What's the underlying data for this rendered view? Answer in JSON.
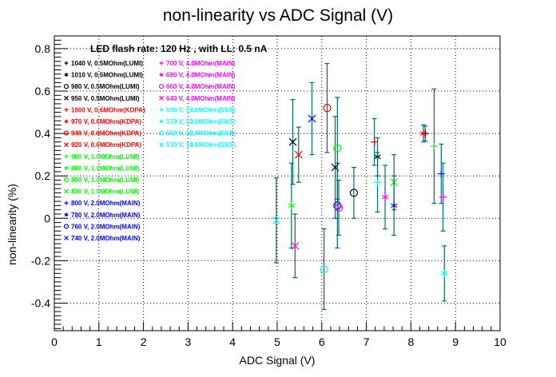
{
  "chart_data": {
    "type": "scatter",
    "title": "non-linearity vs ADC Signal (V)",
    "xlabel": "ADC Signal (V)",
    "ylabel": "non-linearity (%)",
    "xlim": [
      0,
      10
    ],
    "ylim": [
      -0.53,
      0.86
    ],
    "x_ticks": [
      "0",
      "1",
      "2",
      "3",
      "4",
      "5",
      "6",
      "7",
      "8",
      "9",
      "10"
    ],
    "y_ticks": [
      "-0.4",
      "-0.2",
      "0",
      "0.2",
      "0.4",
      "0.6",
      "0.8"
    ],
    "grid": true,
    "annotation": "LED flash rate: 120 Hz , with LL: 0.5 nA",
    "legend_entries": [
      {
        "label": "1040 V, 0.5MOhm(LUMI)",
        "marker": "+",
        "color": "#000000",
        "col": 0
      },
      {
        "label": "1010 V, 0.5MOhm(LUMI)",
        "marker": "*",
        "color": "#000000",
        "col": 0
      },
      {
        "label": "980 V, 0.5MOhm(LUMI)",
        "marker": "O",
        "color": "#000000",
        "col": 0
      },
      {
        "label": "950 V, 0.5MOhm(LUMI)",
        "marker": "X",
        "color": "#000000",
        "col": 0
      },
      {
        "label": "1000 V, 0.6MOhm(KDPA)",
        "marker": "+",
        "color": "#ff0000",
        "col": 0
      },
      {
        "label": "970 V, 0.6MOhm(KDPA)",
        "marker": "*",
        "color": "#ff0000",
        "col": 0
      },
      {
        "label": "940 V, 0.6MOhm(KDPA)",
        "marker": "O",
        "color": "#ff0000",
        "col": 0
      },
      {
        "label": "920 V, 0.6MOhm(KDPA)",
        "marker": "X",
        "color": "#ff0000",
        "col": 0
      },
      {
        "label": "900 V, 1.0MOhm(LUMI)",
        "marker": "+",
        "color": "#00ff00",
        "col": 0
      },
      {
        "label": "880 V, 1.0MOhm(LUMI)",
        "marker": "*",
        "color": "#00ff00",
        "col": 0
      },
      {
        "label": "850 V, 1.0MOhm(LUMI)",
        "marker": "O",
        "color": "#00ff00",
        "col": 0
      },
      {
        "label": "830 V, 1.0MOhm(LUMI)",
        "marker": "X",
        "color": "#00ff00",
        "col": 0
      },
      {
        "label": "800 V, 2.0MOhm(MAIN)",
        "marker": "+",
        "color": "#0000ff",
        "col": 0
      },
      {
        "label": "780 V, 2.0MOhm(MAIN)",
        "marker": "*",
        "color": "#0000ff",
        "col": 0
      },
      {
        "label": "760 V, 2.0MOhm(MAIN)",
        "marker": "O",
        "color": "#0000ff",
        "col": 0
      },
      {
        "label": "740 V, 2.0MOhm(MAIN)",
        "marker": "X",
        "color": "#0000ff",
        "col": 0
      },
      {
        "label": "700 V, 4.0MOhm(MAIN)",
        "marker": "+",
        "color": "#ff00ff",
        "col": 1
      },
      {
        "label": "680 V, 4.0MOhm(MAIN)",
        "marker": "*",
        "color": "#ff00ff",
        "col": 1
      },
      {
        "label": "660 V, 4.0MOhm(MAIN)",
        "marker": "O",
        "color": "#ff00ff",
        "col": 1
      },
      {
        "label": "640 V, 4.0MOhm(MAIN)",
        "marker": "X",
        "color": "#ff00ff",
        "col": 1
      },
      {
        "label": "590 V, 10.0MOhm(SNS)",
        "marker": "+",
        "color": "#00ffff",
        "col": 1
      },
      {
        "label": "570 V, 10.0MOhm(SNS)",
        "marker": "*",
        "color": "#00ffff",
        "col": 1
      },
      {
        "label": "550 V, 10.0MOhm(SNS)",
        "marker": "O",
        "color": "#00ffff",
        "col": 1
      },
      {
        "label": "530 V, 10.0MOhm(SNS)",
        "marker": "X",
        "color": "#00ffff",
        "col": 1
      }
    ],
    "series": [
      {
        "marker": "+",
        "color": "#000000",
        "x": 8.32,
        "y": 0.4,
        "err": 0.035
      },
      {
        "marker": "*",
        "color": "#000000",
        "x": 7.25,
        "y": 0.29,
        "err": 0.09
      },
      {
        "marker": "O",
        "color": "#000000",
        "x": 6.72,
        "y": 0.12,
        "err": 0.12
      },
      {
        "marker": "X",
        "color": "#000000",
        "x": 6.3,
        "y": 0.24,
        "err": 0.24
      },
      {
        "marker": "+",
        "color": "#ff0000",
        "x": 7.18,
        "y": 0.36,
        "err": 0.11
      },
      {
        "marker": "*",
        "color": "#ff0000",
        "x": 8.28,
        "y": 0.4,
        "err": 0.04
      },
      {
        "marker": "O",
        "color": "#ff0000",
        "x": 6.12,
        "y": 0.52,
        "err": 0.21
      },
      {
        "marker": "X",
        "color": "#ff0000",
        "x": 5.48,
        "y": 0.3,
        "err": 0.13
      },
      {
        "marker": "+",
        "color": "#00ff00",
        "x": 8.52,
        "y": 0.34,
        "err": 0.27
      },
      {
        "marker": "*",
        "color": "#00ff00",
        "x": 5.32,
        "y": 0.06,
        "err": 0.2
      },
      {
        "marker": "O",
        "color": "#00ff00",
        "x": 6.35,
        "y": 0.33,
        "err": 0.24
      },
      {
        "marker": "X",
        "color": "#00ff00",
        "x": 7.62,
        "y": 0.17,
        "err": 0.13
      },
      {
        "marker": "+",
        "color": "#0000ff",
        "x": 8.68,
        "y": 0.21,
        "err": 0.14
      },
      {
        "marker": "*",
        "color": "#0000ff",
        "x": 7.62,
        "y": 0.06,
        "err": 0.14
      },
      {
        "marker": "O",
        "color": "#0000ff",
        "x": 6.35,
        "y": 0.06,
        "err": 0.2
      },
      {
        "marker": "X",
        "color": "#0000ff",
        "x": 5.78,
        "y": 0.47,
        "err": 0.17
      },
      {
        "marker": "+",
        "color": "#ff00ff",
        "x": 8.72,
        "y": 0.1,
        "err": 0.16
      },
      {
        "marker": "*",
        "color": "#ff00ff",
        "x": 7.42,
        "y": 0.1,
        "err": 0.15
      },
      {
        "marker": "O",
        "color": "#ff00ff",
        "x": 6.38,
        "y": 0.05,
        "err": 0.13
      },
      {
        "marker": "X",
        "color": "#ff00ff",
        "x": 5.4,
        "y": -0.13,
        "err": 0.15
      },
      {
        "marker": "+",
        "color": "#00ffff",
        "x": 7.25,
        "y": 0.17,
        "err": 0.14
      },
      {
        "marker": "*",
        "color": "#00ffff",
        "x": 8.75,
        "y": -0.26,
        "err": 0.13
      },
      {
        "marker": "O",
        "color": "#00ffff",
        "x": 6.05,
        "y": -0.24,
        "err": 0.19
      },
      {
        "marker": "X",
        "color": "#00ffff",
        "x": 4.98,
        "y": -0.01,
        "err": 0.2
      },
      {
        "marker": "X",
        "color": "#000000",
        "x": 5.35,
        "y": 0.36,
        "err": 0.2
      }
    ]
  }
}
